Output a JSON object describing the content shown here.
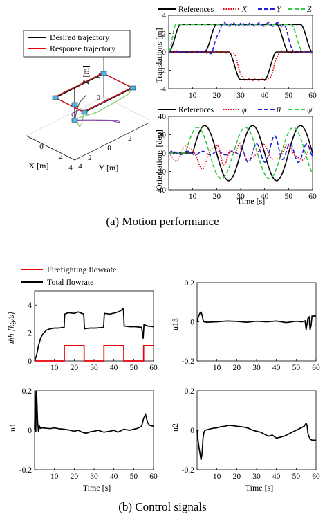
{
  "captions": {
    "a": "(a)  Motion  performance",
    "b": "(b)  Control  signals"
  },
  "chart_data": [
    {
      "id": "traj3d",
      "type": "line3d",
      "legend": [
        {
          "name": "Desired trajectory",
          "color": "#000000"
        },
        {
          "name": "Response trajectory",
          "color": "#e8000b"
        }
      ],
      "xlabel": "X [m]",
      "ylabel": "Y [m]",
      "zlabel": "Z [m]",
      "x_ticks": [
        "-2",
        "0",
        "2",
        "4"
      ],
      "y_ticks": [
        "0",
        "2",
        "4"
      ],
      "z_ticks": [
        "0",
        "2",
        "4"
      ],
      "square_corners": [
        [
          2,
          0,
          3
        ],
        [
          2,
          3,
          3
        ],
        [
          -3,
          3,
          3
        ],
        [
          -3,
          0,
          3
        ]
      ],
      "colors": {
        "desired": "#000000",
        "response": "#e8000b",
        "ghost1": "#77c96a",
        "ghost2": "#8a4ea8",
        "ghost3": "#555555"
      }
    },
    {
      "id": "translations",
      "type": "line",
      "legend": [
        {
          "name": "References",
          "color": "#000000",
          "dash": "solid"
        },
        {
          "name": "X",
          "color": "#e8000b",
          "dash": "dot"
        },
        {
          "name": "Y",
          "color": "#1f1fd6",
          "dash": "dash"
        },
        {
          "name": "Z",
          "color": "#2ecc40",
          "dash": "dash"
        }
      ],
      "ylabel": "Translations  [m]",
      "xlim": [
        0,
        60
      ],
      "ylim": [
        -4,
        4
      ],
      "x_ticks": [
        10,
        20,
        30,
        40,
        50,
        60
      ],
      "y_ticks": [
        -4,
        -2,
        0,
        2,
        4
      ]
    },
    {
      "id": "orientations",
      "type": "line",
      "legend": [
        {
          "name": "References",
          "color": "#000000",
          "dash": "solid"
        },
        {
          "name": "φ",
          "color": "#e8000b",
          "dash": "dot"
        },
        {
          "name": "θ",
          "color": "#1f1fd6",
          "dash": "dash"
        },
        {
          "name": "ψ",
          "color": "#2ecc40",
          "dash": "dash"
        }
      ],
      "xlabel": "Time  [s]",
      "ylabel": "Orientations  [deg]",
      "xlim": [
        0,
        60
      ],
      "ylim": [
        -40,
        40
      ],
      "x_ticks": [
        10,
        20,
        30,
        40,
        50,
        60
      ],
      "y_ticks": [
        -40,
        -20,
        0,
        20,
        40
      ]
    },
    {
      "id": "flowrate",
      "type": "line",
      "legend": [
        {
          "name": "Firefighting flowrate",
          "color": "#e8000b"
        },
        {
          "name": "Total flowrate",
          "color": "#000000"
        }
      ],
      "ylabel": "ṁh [kg/s]",
      "xlim": [
        0,
        60
      ],
      "ylim": [
        0,
        5
      ],
      "x_ticks": [
        10,
        20,
        30,
        40,
        50,
        60
      ],
      "y_ticks": [
        0,
        2,
        4
      ],
      "series": [
        {
          "name": "Firefighting flowrate",
          "x": [
            0,
            15,
            15,
            25,
            25,
            35,
            35,
            45,
            45,
            55,
            55,
            60
          ],
          "y": [
            0,
            0,
            1.1,
            1.1,
            0,
            0,
            1.1,
            1.1,
            0,
            0,
            1.1,
            1.1
          ]
        },
        {
          "name": "Total flowrate",
          "x": [
            0,
            1,
            2,
            3,
            4,
            6,
            8,
            10,
            12,
            14.9,
            15.2,
            17,
            20,
            22,
            24.8,
            25.2,
            28,
            31,
            34.8,
            35.2,
            38,
            41,
            43,
            44.8,
            45.2,
            48,
            51,
            54,
            54.8,
            55.2,
            57,
            60
          ],
          "y": [
            0,
            0.4,
            1.1,
            1.6,
            1.9,
            2.2,
            2.3,
            2.35,
            2.35,
            2.4,
            3.35,
            3.45,
            3.4,
            3.5,
            3.35,
            2.3,
            2.35,
            2.35,
            2.4,
            3.4,
            3.35,
            3.45,
            3.55,
            3.75,
            2.5,
            2.45,
            2.45,
            2.4,
            1.6,
            2.6,
            2.5,
            2.45
          ]
        }
      ]
    },
    {
      "id": "u13",
      "type": "line",
      "ylabel": "u13",
      "xlim": [
        0,
        60
      ],
      "ylim": [
        -0.2,
        0.2
      ],
      "x_ticks": [
        10,
        20,
        30,
        40,
        50,
        60
      ],
      "y_ticks": [
        -0.2,
        0,
        0.2
      ],
      "series": [
        {
          "name": "u13",
          "x": [
            0,
            0.5,
            1,
            1.5,
            2,
            2.5,
            3,
            3.5,
            5,
            10,
            15,
            20,
            25,
            30,
            35,
            40,
            45,
            50,
            53,
            54.5,
            55,
            55.5,
            56,
            56.5,
            57,
            57.5,
            58,
            60
          ],
          "y": [
            0,
            0.02,
            0.035,
            0.045,
            0.05,
            0.035,
            0.01,
            0.0,
            -0.002,
            0.0,
            0.004,
            0.002,
            -0.002,
            0.003,
            0.0,
            0.004,
            -0.004,
            0.003,
            0.0,
            0.005,
            -0.04,
            -0.01,
            0.02,
            0.025,
            -0.04,
            -0.02,
            0.03,
            0.03
          ]
        }
      ]
    },
    {
      "id": "u1",
      "type": "line",
      "ylabel": "u1",
      "xlabel": "Time [s]",
      "xlim": [
        0,
        60
      ],
      "ylim": [
        -0.2,
        0.2
      ],
      "x_ticks": [
        10,
        20,
        30,
        40,
        50,
        60
      ],
      "y_ticks": [
        -0.2,
        0,
        0.2
      ],
      "series": [
        {
          "name": "u1",
          "x": [
            0,
            0.3,
            0.6,
            1,
            1.5,
            2,
            2.5,
            3,
            4,
            6,
            8,
            10,
            12,
            15,
            18,
            20,
            22,
            24,
            26,
            28,
            30,
            32,
            35,
            38,
            40,
            42,
            45,
            48,
            50,
            52,
            54,
            55,
            56,
            57,
            58,
            60
          ],
          "y": [
            0,
            0.2,
            -0.01,
            0.2,
            0.05,
            -0.01,
            0.02,
            0.01,
            0.012,
            0.01,
            0.008,
            0.012,
            0.008,
            0.005,
            0.0,
            -0.005,
            0.0,
            -0.01,
            -0.015,
            -0.008,
            -0.005,
            0.0,
            -0.01,
            -0.005,
            0.0,
            -0.01,
            0.005,
            0.0,
            0.005,
            0.01,
            0.02,
            0.06,
            0.08,
            0.04,
            0.025,
            0.02
          ]
        }
      ]
    },
    {
      "id": "u2",
      "type": "line",
      "ylabel": "u2",
      "xlabel": "Time [s]",
      "xlim": [
        0,
        60
      ],
      "ylim": [
        -0.2,
        0.2
      ],
      "x_ticks": [
        10,
        20,
        30,
        40,
        50,
        60
      ],
      "y_ticks": [
        -0.2,
        0,
        0.2
      ],
      "series": [
        {
          "name": "u2",
          "x": [
            0,
            0.5,
            1,
            1.5,
            2,
            2.5,
            3,
            3.5,
            4,
            6,
            8,
            10,
            12,
            14,
            16,
            18,
            20,
            22,
            24,
            26,
            28,
            30,
            32,
            34,
            36,
            38,
            40,
            42,
            44,
            46,
            48,
            50,
            52,
            54,
            55,
            55.5,
            56,
            57,
            58,
            60
          ],
          "y": [
            0,
            -0.05,
            -0.09,
            -0.12,
            -0.15,
            -0.12,
            -0.04,
            -0.01,
            0.0,
            0.005,
            0.01,
            0.012,
            0.018,
            0.02,
            0.025,
            0.023,
            0.02,
            0.018,
            0.015,
            0.01,
            0.0,
            -0.005,
            -0.01,
            -0.02,
            -0.03,
            -0.025,
            -0.04,
            -0.035,
            -0.03,
            -0.02,
            -0.01,
            0.0,
            0.01,
            0.02,
            0.035,
            0.025,
            -0.02,
            -0.045,
            -0.05,
            -0.05
          ]
        }
      ]
    }
  ]
}
